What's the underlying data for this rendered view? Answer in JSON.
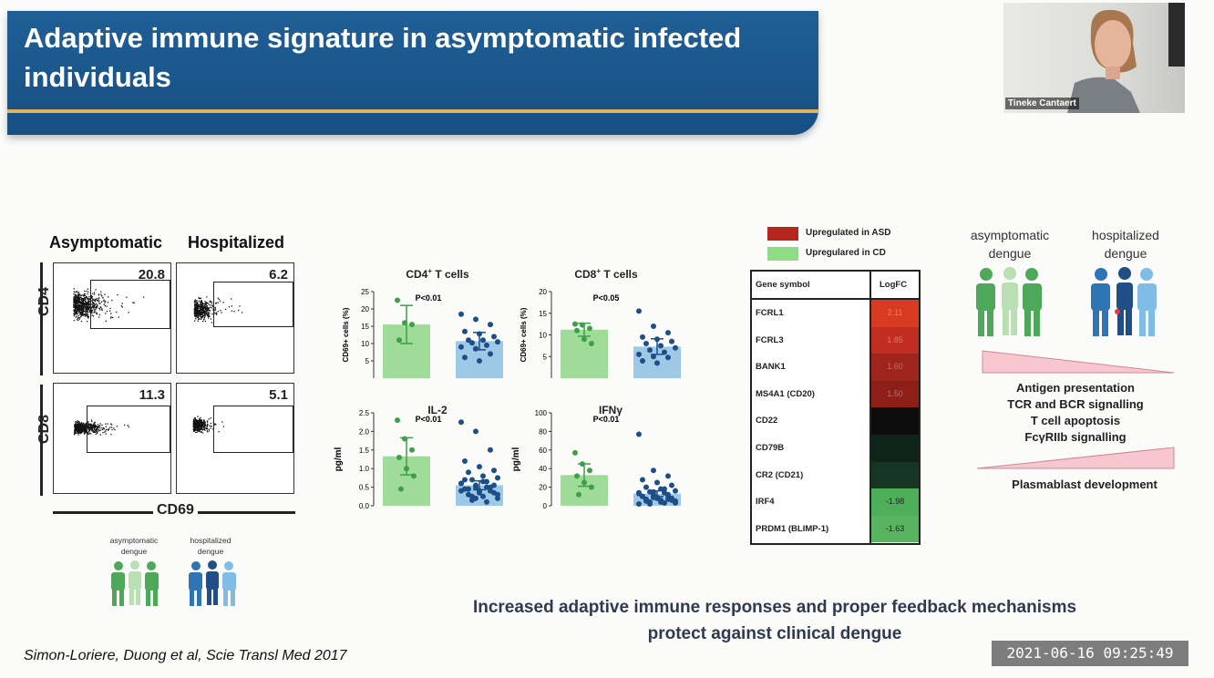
{
  "slide": {
    "title": "Adaptive immune signature in asymptomatic infected individuals",
    "flow": {
      "col_asymptomatic": "Asymptomatic",
      "col_hospitalized": "Hospitalized",
      "row_cd4": "CD4",
      "row_cd8": "CD8",
      "x_axis": "CD69",
      "cd4_asym": "20.8",
      "cd4_hosp": "6.2",
      "cd8_asym": "11.3",
      "cd8_hosp": "5.1"
    },
    "bottom_legend": {
      "asym": "asymptomatic dengue",
      "hosp": "hospitalized dengue"
    },
    "heatmap_legend": {
      "up_asd": "Upregulated in ASD",
      "up_cd": "Upregulared in  CD",
      "color_asd": "#b5261e",
      "color_cd": "#8fdc86"
    },
    "gene_table": {
      "header_gene": "Gene symbol",
      "header_logfc": "LogFC",
      "rows": [
        {
          "gene": "FCRL1",
          "logfc": "2.11",
          "color": "#d93a22"
        },
        {
          "gene": "FCRL3",
          "logfc": "1.85",
          "color": "#c12d20"
        },
        {
          "gene": "BANK1",
          "logfc": "1.60",
          "color": "#9f241b"
        },
        {
          "gene": "MS4A1 (CD20)",
          "logfc": "1.50",
          "color": "#8e1f18"
        },
        {
          "gene": "CD22",
          "logfc": "",
          "color": "#0c0c0c"
        },
        {
          "gene": "CD79B",
          "logfc": "",
          "color": "#10251a"
        },
        {
          "gene": "CR2 (CD21)",
          "logfc": "",
          "color": "#163522"
        },
        {
          "gene": "IRF4",
          "logfc": "-1.98",
          "color": "#4fae5a"
        },
        {
          "gene": "PRDM1 (BLIMP-1)",
          "logfc": "-1.63",
          "color": "#58b460"
        }
      ]
    },
    "right_panel": {
      "asym_label": "asymptomatic dengue",
      "hosp_label": "hospitalized dengue",
      "pathways_up": [
        "Antigen presentation",
        "TCR and BCR signalling",
        "T cell apoptosis",
        "FcγRIIb signalling"
      ],
      "pathway_down": "Plasmablast development"
    },
    "conclusion": "Increased adaptive immune responses and proper feedback mechanisms protect against clinical dengue",
    "citation": "Simon-Loriere, Duong et al, Scie Transl Med 2017"
  },
  "webcam": {
    "name": "Tineke Cantaert"
  },
  "timestamp": "2021-06-16  09:25:49",
  "colors": {
    "asym_green": "#6cc27a",
    "hosp_blue": "#2f74b5",
    "banner": "#1c5a90",
    "gold": "#e0b25a"
  },
  "chart_data": [
    {
      "type": "bar",
      "title": "CD4+ T cells",
      "ylabel": "CD69+ cells (%)",
      "annotation": "P<0.01",
      "ylim": [
        0,
        25
      ],
      "yticks": [
        "5",
        "10",
        "15",
        "20",
        "25"
      ],
      "categories": [
        "asymptomatic",
        "hospitalized"
      ],
      "values": [
        15.5,
        10.7
      ],
      "errors": [
        5.5,
        2.5
      ],
      "points": [
        [
          22.5,
          16,
          15.5,
          11
        ],
        [
          18.5,
          17,
          15.5,
          13.5,
          12.8,
          12,
          11,
          11,
          10.5,
          10.2,
          9.5,
          9,
          8.5,
          7,
          6,
          5
        ]
      ]
    },
    {
      "type": "bar",
      "title": "CD8+ T cells",
      "ylabel": "CD69+ cells (%)",
      "annotation": "P<0.05",
      "ylim": [
        0,
        20
      ],
      "yticks": [
        "5",
        "10",
        "15",
        "20"
      ],
      "categories": [
        "asymptomatic",
        "hospitalized"
      ],
      "values": [
        11.2,
        7.3
      ],
      "errors": [
        1.5,
        1.8
      ],
      "points": [
        [
          12.5,
          12.3,
          11.5,
          11,
          9,
          8
        ],
        [
          15.5,
          12,
          10.5,
          9.5,
          9,
          8.5,
          8,
          7.5,
          7,
          6.5,
          6,
          5.5,
          5,
          4.8,
          4,
          3.5
        ]
      ]
    },
    {
      "type": "bar",
      "title": "IL-2",
      "ylabel": "pg/ml",
      "annotation": "P<0.01",
      "ylim": [
        0,
        2.5
      ],
      "yticks": [
        "0.0",
        "0.5",
        "1.0",
        "1.5",
        "2.0",
        "2.5"
      ],
      "categories": [
        "asymptomatic",
        "hospitalized"
      ],
      "values": [
        1.33,
        0.55
      ],
      "errors": [
        0.5,
        0.12
      ],
      "points": [
        [
          2.3,
          1.8,
          1.5,
          1.3,
          1.0,
          0.8,
          0.45
        ],
        [
          2.25,
          2.0,
          1.5,
          1.2,
          1.05,
          0.95,
          0.9,
          0.8,
          0.75,
          0.7,
          0.65,
          0.6,
          0.55,
          0.5,
          0.45,
          0.4,
          0.35,
          0.3,
          0.25,
          0.2,
          0.15,
          0.1,
          0.6,
          0.5,
          0.4,
          0.7,
          0.35,
          0.55,
          0.45,
          0.65,
          0.3,
          0.25,
          0.5,
          0.4,
          0.2
        ]
      ]
    },
    {
      "type": "bar",
      "title": "IFNγ",
      "ylabel": "pg/ml",
      "annotation": "P<0.01",
      "ylim": [
        0,
        100
      ],
      "yticks": [
        "0",
        "20",
        "40",
        "60",
        "80",
        "100"
      ],
      "categories": [
        "asymptomatic",
        "hospitalized"
      ],
      "values": [
        33,
        13
      ],
      "errors": [
        12,
        3
      ],
      "points": [
        [
          57,
          45,
          38,
          32,
          25,
          20,
          12
        ],
        [
          77,
          38,
          32,
          28,
          25,
          22,
          20,
          18,
          16,
          15,
          14,
          13,
          12,
          11,
          10,
          9,
          8,
          7,
          6,
          5,
          4,
          3,
          2,
          15,
          12,
          10,
          8,
          6,
          5,
          4,
          3,
          2,
          18,
          14,
          9,
          7
        ]
      ]
    }
  ]
}
